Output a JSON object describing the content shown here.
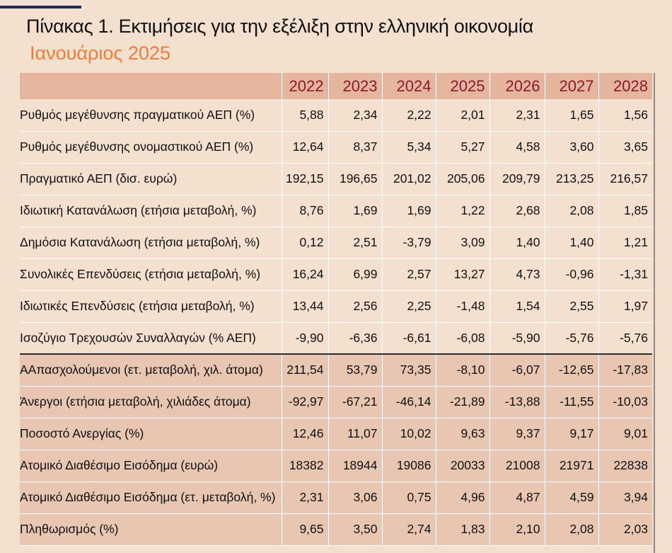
{
  "title": "Πίνακας 1. Εκτιμήσεις για την εξέλιξη στην ελληνική οικονομία",
  "subtitle": "Ιανουάριος 2025",
  "years": [
    "2022",
    "2023",
    "2024",
    "2025",
    "2026",
    "2027",
    "2028"
  ],
  "group1": [
    {
      "label": "Ρυθμός μεγέθυνσης πραγματικού ΑΕΠ (%)",
      "values": [
        "5,88",
        "2,34",
        "2,22",
        "2,01",
        "2,31",
        "1,65",
        "1,56"
      ]
    },
    {
      "label": "Ρυθμός μεγέθυνσης ονομαστικού ΑΕΠ (%)",
      "values": [
        "12,64",
        "8,37",
        "5,34",
        "5,27",
        "4,58",
        "3,60",
        "3,65"
      ]
    },
    {
      "label": "Πραγματικό ΑΕΠ (δισ. ευρώ)",
      "values": [
        "192,15",
        "196,65",
        "201,02",
        "205,06",
        "209,79",
        "213,25",
        "216,57"
      ]
    },
    {
      "label": "Ιδιωτική Κατανάλωση (ετήσια μεταβολή, %)",
      "values": [
        "8,76",
        "1,69",
        "1,69",
        "1,22",
        "2,68",
        "2,08",
        "1,85"
      ]
    },
    {
      "label": "Δημόσια Κατανάλωση (ετήσια μεταβολή, %)",
      "values": [
        "0,12",
        "2,51",
        "-3,79",
        "3,09",
        "1,40",
        "1,40",
        "1,21"
      ]
    },
    {
      "label": "Συνολικές Επενδύσεις (ετήσια μεταβολή, %)",
      "values": [
        "16,24",
        "6,99",
        "2,57",
        "13,27",
        "4,73",
        "-0,96",
        "-1,31"
      ]
    },
    {
      "label": "Ιδιωτικές Επενδύσεις (ετήσια μεταβολή, %)",
      "values": [
        "13,44",
        "2,56",
        "2,25",
        "-1,48",
        "1,54",
        "2,55",
        "1,97"
      ]
    },
    {
      "label": "Ισοζύγιο Τρεχουσών Συναλλαγών (% ΑΕΠ)",
      "values": [
        "-9,90",
        "-6,36",
        "-6,61",
        "-6,08",
        "-5,90",
        "-5,76",
        "-5,76"
      ]
    }
  ],
  "group2": [
    {
      "label": "ΑΑπασχολούμενοι (ετ. μεταβολή, χιλ. άτομα)",
      "values": [
        "211,54",
        "53,79",
        "73,35",
        "-8,10",
        "-6,07",
        "-12,65",
        "-17,83"
      ]
    },
    {
      "label": "Άνεργοι (ετήσια μεταβολή, χιλιάδες άτομα)",
      "values": [
        "-92,97",
        "-67,21",
        "-46,14",
        "-21,89",
        "-13,88",
        "-11,55",
        "-10,03"
      ]
    },
    {
      "label": "Ποσοστό Ανεργίας (%)",
      "values": [
        "12,46",
        "11,07",
        "10,02",
        "9,63",
        "9,37",
        "9,17",
        "9,01"
      ]
    },
    {
      "label": "Ατομικό Διαθέσιμο Εισόδημα (ευρώ)",
      "values": [
        "18382",
        "18944",
        "19086",
        "20033",
        "21008",
        "21971",
        "22838"
      ]
    },
    {
      "label": "Ατομικό Διαθέσιμο Εισόδημα (ετ. μεταβολή, %)",
      "values": [
        "2,31",
        "3,06",
        "0,75",
        "4,96",
        "4,87",
        "4,59",
        "3,94"
      ]
    },
    {
      "label": "Πληθωρισμός (%)",
      "values": [
        "9,65",
        "3,50",
        "2,74",
        "1,83",
        "2,10",
        "2,08",
        "2,03"
      ]
    }
  ]
}
